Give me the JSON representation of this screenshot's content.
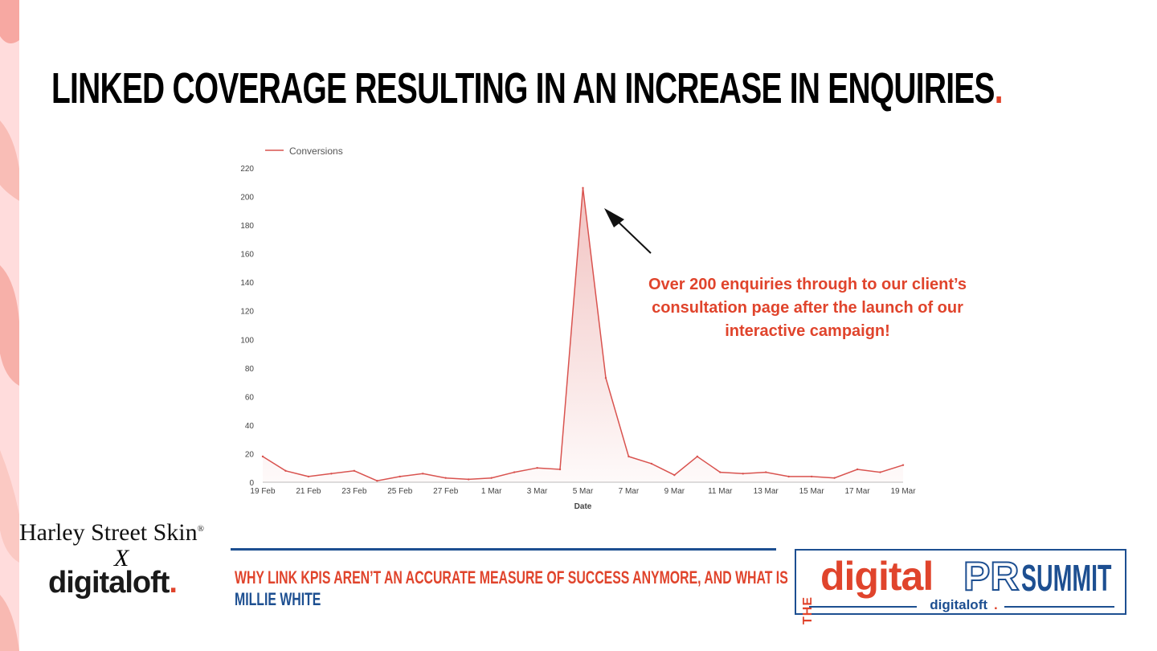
{
  "slide": {
    "title": "LINKED COVERAGE RESULTING IN AN INCREASE IN ENQUIRIES",
    "title_dot": ".",
    "annotation": "Over 200 enquiries through to our client’s consultation page after the launch of our interactive campaign!"
  },
  "footer": {
    "client_brand": "Harley Street Skin",
    "client_mark": "®",
    "x_mark": "X",
    "agency_brand": "digitaloft",
    "agency_dot": ".",
    "talk_title": "WHY LINK KPIS AREN’T AN ACCURATE MEASURE OF SUCCESS ANYMORE, AND WHAT IS",
    "speaker": "MILLIE WHITE",
    "summit_the": "THE",
    "summit_digital": "digital",
    "summit_pr": "PR",
    "summit_summit": "SUMMIT",
    "summit_sub": "digitaloft",
    "summit_sub_dot": "."
  },
  "colors": {
    "accent": "#e0442c",
    "navy": "#1d4f91",
    "line": "#d9534f"
  },
  "chart_data": {
    "type": "line",
    "legend": "Conversions",
    "legend_position": "top-left",
    "xlabel": "Date",
    "ylabel": "",
    "ylim": [
      0,
      220
    ],
    "yticks": [
      0,
      20,
      40,
      60,
      80,
      100,
      120,
      140,
      160,
      180,
      200,
      220
    ],
    "grid": false,
    "x": [
      "19 Feb",
      "20 Feb",
      "21 Feb",
      "22 Feb",
      "23 Feb",
      "24 Feb",
      "25 Feb",
      "26 Feb",
      "27 Feb",
      "28 Feb",
      "1 Mar",
      "2 Mar",
      "3 Mar",
      "4 Mar",
      "5 Mar",
      "6 Mar",
      "7 Mar",
      "8 Mar",
      "9 Mar",
      "10 Mar",
      "11 Mar",
      "12 Mar",
      "13 Mar",
      "14 Mar",
      "15 Mar",
      "16 Mar",
      "17 Mar",
      "18 Mar",
      "19 Mar"
    ],
    "xtick_labels": [
      "19 Feb",
      "21 Feb",
      "23 Feb",
      "25 Feb",
      "27 Feb",
      "1 Mar",
      "3 Mar",
      "5 Mar",
      "7 Mar",
      "9 Mar",
      "11 Mar",
      "13 Mar",
      "15 Mar",
      "17 Mar",
      "19 Mar"
    ],
    "series": [
      {
        "name": "Conversions",
        "values": [
          18,
          8,
          4,
          6,
          8,
          1,
          4,
          6,
          3,
          2,
          3,
          7,
          10,
          9,
          206,
          73,
          18,
          13,
          5,
          18,
          7,
          6,
          7,
          4,
          4,
          3,
          9,
          7,
          12
        ]
      }
    ]
  }
}
